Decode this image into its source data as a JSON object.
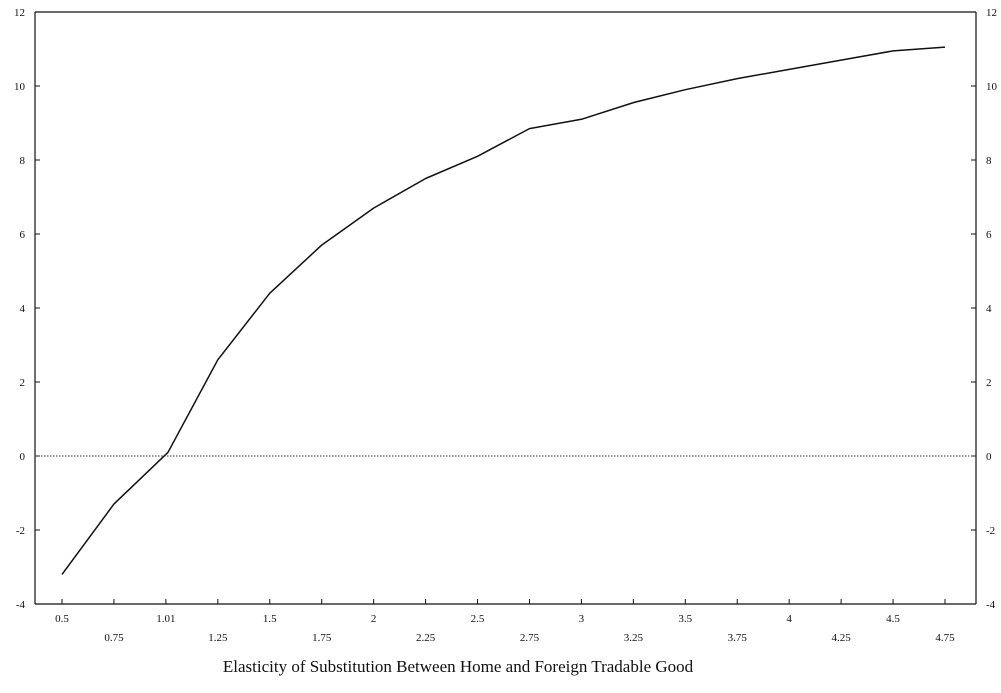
{
  "chart_data": {
    "type": "line",
    "title": "",
    "xlabel": "Elasticity of Substitution Between Home and Foreign Tradable Good",
    "ylabel": "",
    "x_tick_labels": [
      {
        "value": 0.5,
        "label": "0.5",
        "row": "upper"
      },
      {
        "value": 0.75,
        "label": "0.75",
        "row": "lower"
      },
      {
        "value": 1.0,
        "label": "1.01",
        "row": "upper"
      },
      {
        "value": 1.25,
        "label": "1.25",
        "row": "lower"
      },
      {
        "value": 1.5,
        "label": "1.5",
        "row": "upper"
      },
      {
        "value": 1.75,
        "label": "1.75",
        "row": "lower"
      },
      {
        "value": 2.0,
        "label": "2",
        "row": "upper"
      },
      {
        "value": 2.25,
        "label": "2.25",
        "row": "lower"
      },
      {
        "value": 2.5,
        "label": "2.5",
        "row": "upper"
      },
      {
        "value": 2.75,
        "label": "2.75",
        "row": "lower"
      },
      {
        "value": 3.0,
        "label": "3",
        "row": "upper"
      },
      {
        "value": 3.25,
        "label": "3.25",
        "row": "lower"
      },
      {
        "value": 3.5,
        "label": "3.5",
        "row": "upper"
      },
      {
        "value": 3.75,
        "label": "3.75",
        "row": "lower"
      },
      {
        "value": 4.0,
        "label": "4",
        "row": "upper"
      },
      {
        "value": 4.25,
        "label": "4.25",
        "row": "lower"
      },
      {
        "value": 4.5,
        "label": "4.5",
        "row": "upper"
      },
      {
        "value": 4.75,
        "label": "4.75",
        "row": "lower"
      }
    ],
    "y_tick_labels": [
      "-4",
      "-2",
      "0",
      "2",
      "4",
      "6",
      "8",
      "10",
      "12"
    ],
    "xlim": [
      0.5,
      4.75
    ],
    "ylim": [
      -4,
      12
    ],
    "grid": false,
    "reference_line_y": 0,
    "series": [
      {
        "x": [
          0.5,
          0.75,
          1.01,
          1.25,
          1.5,
          1.75,
          2.0,
          2.25,
          2.5,
          2.75,
          3.0,
          3.25,
          3.5,
          3.75,
          4.0,
          4.25,
          4.5,
          4.75
        ],
        "values": [
          -3.2,
          -1.3,
          0.1,
          2.6,
          4.4,
          5.7,
          6.7,
          7.5,
          8.1,
          8.85,
          9.1,
          9.55,
          9.9,
          10.2,
          10.45,
          10.7,
          10.95,
          11.05
        ],
        "color": "#111111"
      }
    ]
  }
}
